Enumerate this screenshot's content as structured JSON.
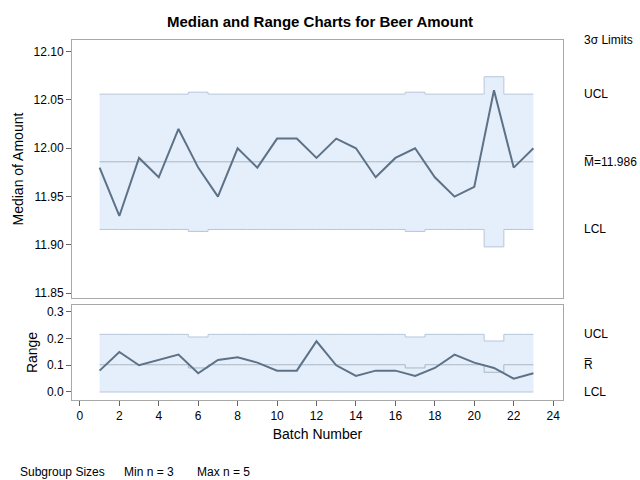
{
  "chart_data": [
    {
      "type": "line",
      "title": "Median and Range Charts for Beer Amount",
      "ylabel": "Median of Amount",
      "color": "#5d7187",
      "grid": false,
      "tick_labels": "y",
      "x": [
        1,
        2,
        3,
        4,
        5,
        6,
        7,
        8,
        9,
        10,
        11,
        12,
        13,
        14,
        15,
        16,
        17,
        18,
        19,
        20,
        21,
        22,
        23
      ],
      "values": [
        11.98,
        11.93,
        11.99,
        11.97,
        12.02,
        11.98,
        11.95,
        12.0,
        11.98,
        12.01,
        12.01,
        11.99,
        12.01,
        12.0,
        11.97,
        11.99,
        12.0,
        11.97,
        11.95,
        11.96,
        12.06,
        11.98,
        12.0
      ],
      "ucl": [
        12.056,
        12.056,
        12.056,
        12.056,
        12.056,
        12.058,
        12.056,
        12.056,
        12.056,
        12.056,
        12.056,
        12.056,
        12.056,
        12.056,
        12.056,
        12.056,
        12.058,
        12.056,
        12.056,
        12.056,
        12.074,
        12.056,
        12.056
      ],
      "center": [
        11.986,
        11.986,
        11.986,
        11.986,
        11.986,
        11.986,
        11.986,
        11.986,
        11.986,
        11.986,
        11.986,
        11.986,
        11.986,
        11.986,
        11.986,
        11.986,
        11.986,
        11.986,
        11.986,
        11.986,
        11.986,
        11.986,
        11.986
      ],
      "lcl": [
        11.916,
        11.916,
        11.916,
        11.916,
        11.916,
        11.914,
        11.916,
        11.916,
        11.916,
        11.916,
        11.916,
        11.916,
        11.916,
        11.916,
        11.916,
        11.916,
        11.914,
        11.916,
        11.916,
        11.916,
        11.898,
        11.916,
        11.916
      ],
      "limit_labels": {
        "header": "3σ Limits",
        "upper": "UCL",
        "center": "M̅=11.986",
        "lower": "LCL"
      },
      "xlim": [
        -0.4,
        24.5
      ],
      "xticks": [
        0,
        2,
        4,
        6,
        8,
        10,
        12,
        14,
        16,
        18,
        20,
        22,
        24
      ],
      "ylim": [
        11.845,
        12.112
      ],
      "yticks": [
        11.85,
        {
          "value": 11.9,
          "label": "11.90"
        },
        11.95,
        {
          "value": 12,
          "label": "12.00"
        },
        12.05,
        {
          "value": 12.1,
          "label": "12.10"
        }
      ]
    },
    {
      "type": "line",
      "xlabel": "Batch Number",
      "ylabel": "Range",
      "color": "#5d7187",
      "grid": false,
      "x": [
        1,
        2,
        3,
        4,
        5,
        6,
        7,
        8,
        9,
        10,
        11,
        12,
        13,
        14,
        15,
        16,
        17,
        18,
        19,
        20,
        21,
        22,
        23
      ],
      "values": [
        0.08,
        0.15,
        0.1,
        0.12,
        0.14,
        0.07,
        0.12,
        0.13,
        0.11,
        0.08,
        0.08,
        0.19,
        0.1,
        0.06,
        0.08,
        0.08,
        0.06,
        0.09,
        0.14,
        0.11,
        0.09,
        0.05,
        0.07
      ],
      "ucl": [
        0.216,
        0.216,
        0.216,
        0.216,
        0.216,
        0.206,
        0.216,
        0.216,
        0.216,
        0.216,
        0.216,
        0.216,
        0.216,
        0.216,
        0.216,
        0.216,
        0.206,
        0.216,
        0.216,
        0.216,
        0.191,
        0.216,
        0.216
      ],
      "center": [
        0.102,
        0.102,
        0.102,
        0.102,
        0.102,
        0.09,
        0.102,
        0.102,
        0.102,
        0.102,
        0.102,
        0.102,
        0.102,
        0.102,
        0.102,
        0.102,
        0.09,
        0.102,
        0.102,
        0.102,
        0.074,
        0.102,
        0.102
      ],
      "lcl": [
        0,
        0,
        0,
        0,
        0,
        0,
        0,
        0,
        0,
        0,
        0,
        0,
        0,
        0,
        0,
        0,
        0,
        0,
        0,
        0,
        0,
        0,
        0
      ],
      "limit_labels": {
        "upper": "UCL",
        "center": "R̅",
        "lower": "LCL"
      },
      "footnote": [
        "Subgroup Sizes",
        "Min n = 3",
        "Max n = 5"
      ],
      "xlim": [
        -0.4,
        24.5
      ],
      "xticks": [
        0,
        2,
        4,
        6,
        8,
        10,
        12,
        14,
        16,
        18,
        20,
        22,
        24
      ],
      "ylim": [
        -0.03,
        0.326
      ],
      "yticks": [
        {
          "value": 0,
          "label": "0.0"
        },
        0.1,
        0.2,
        0.3
      ]
    }
  ]
}
